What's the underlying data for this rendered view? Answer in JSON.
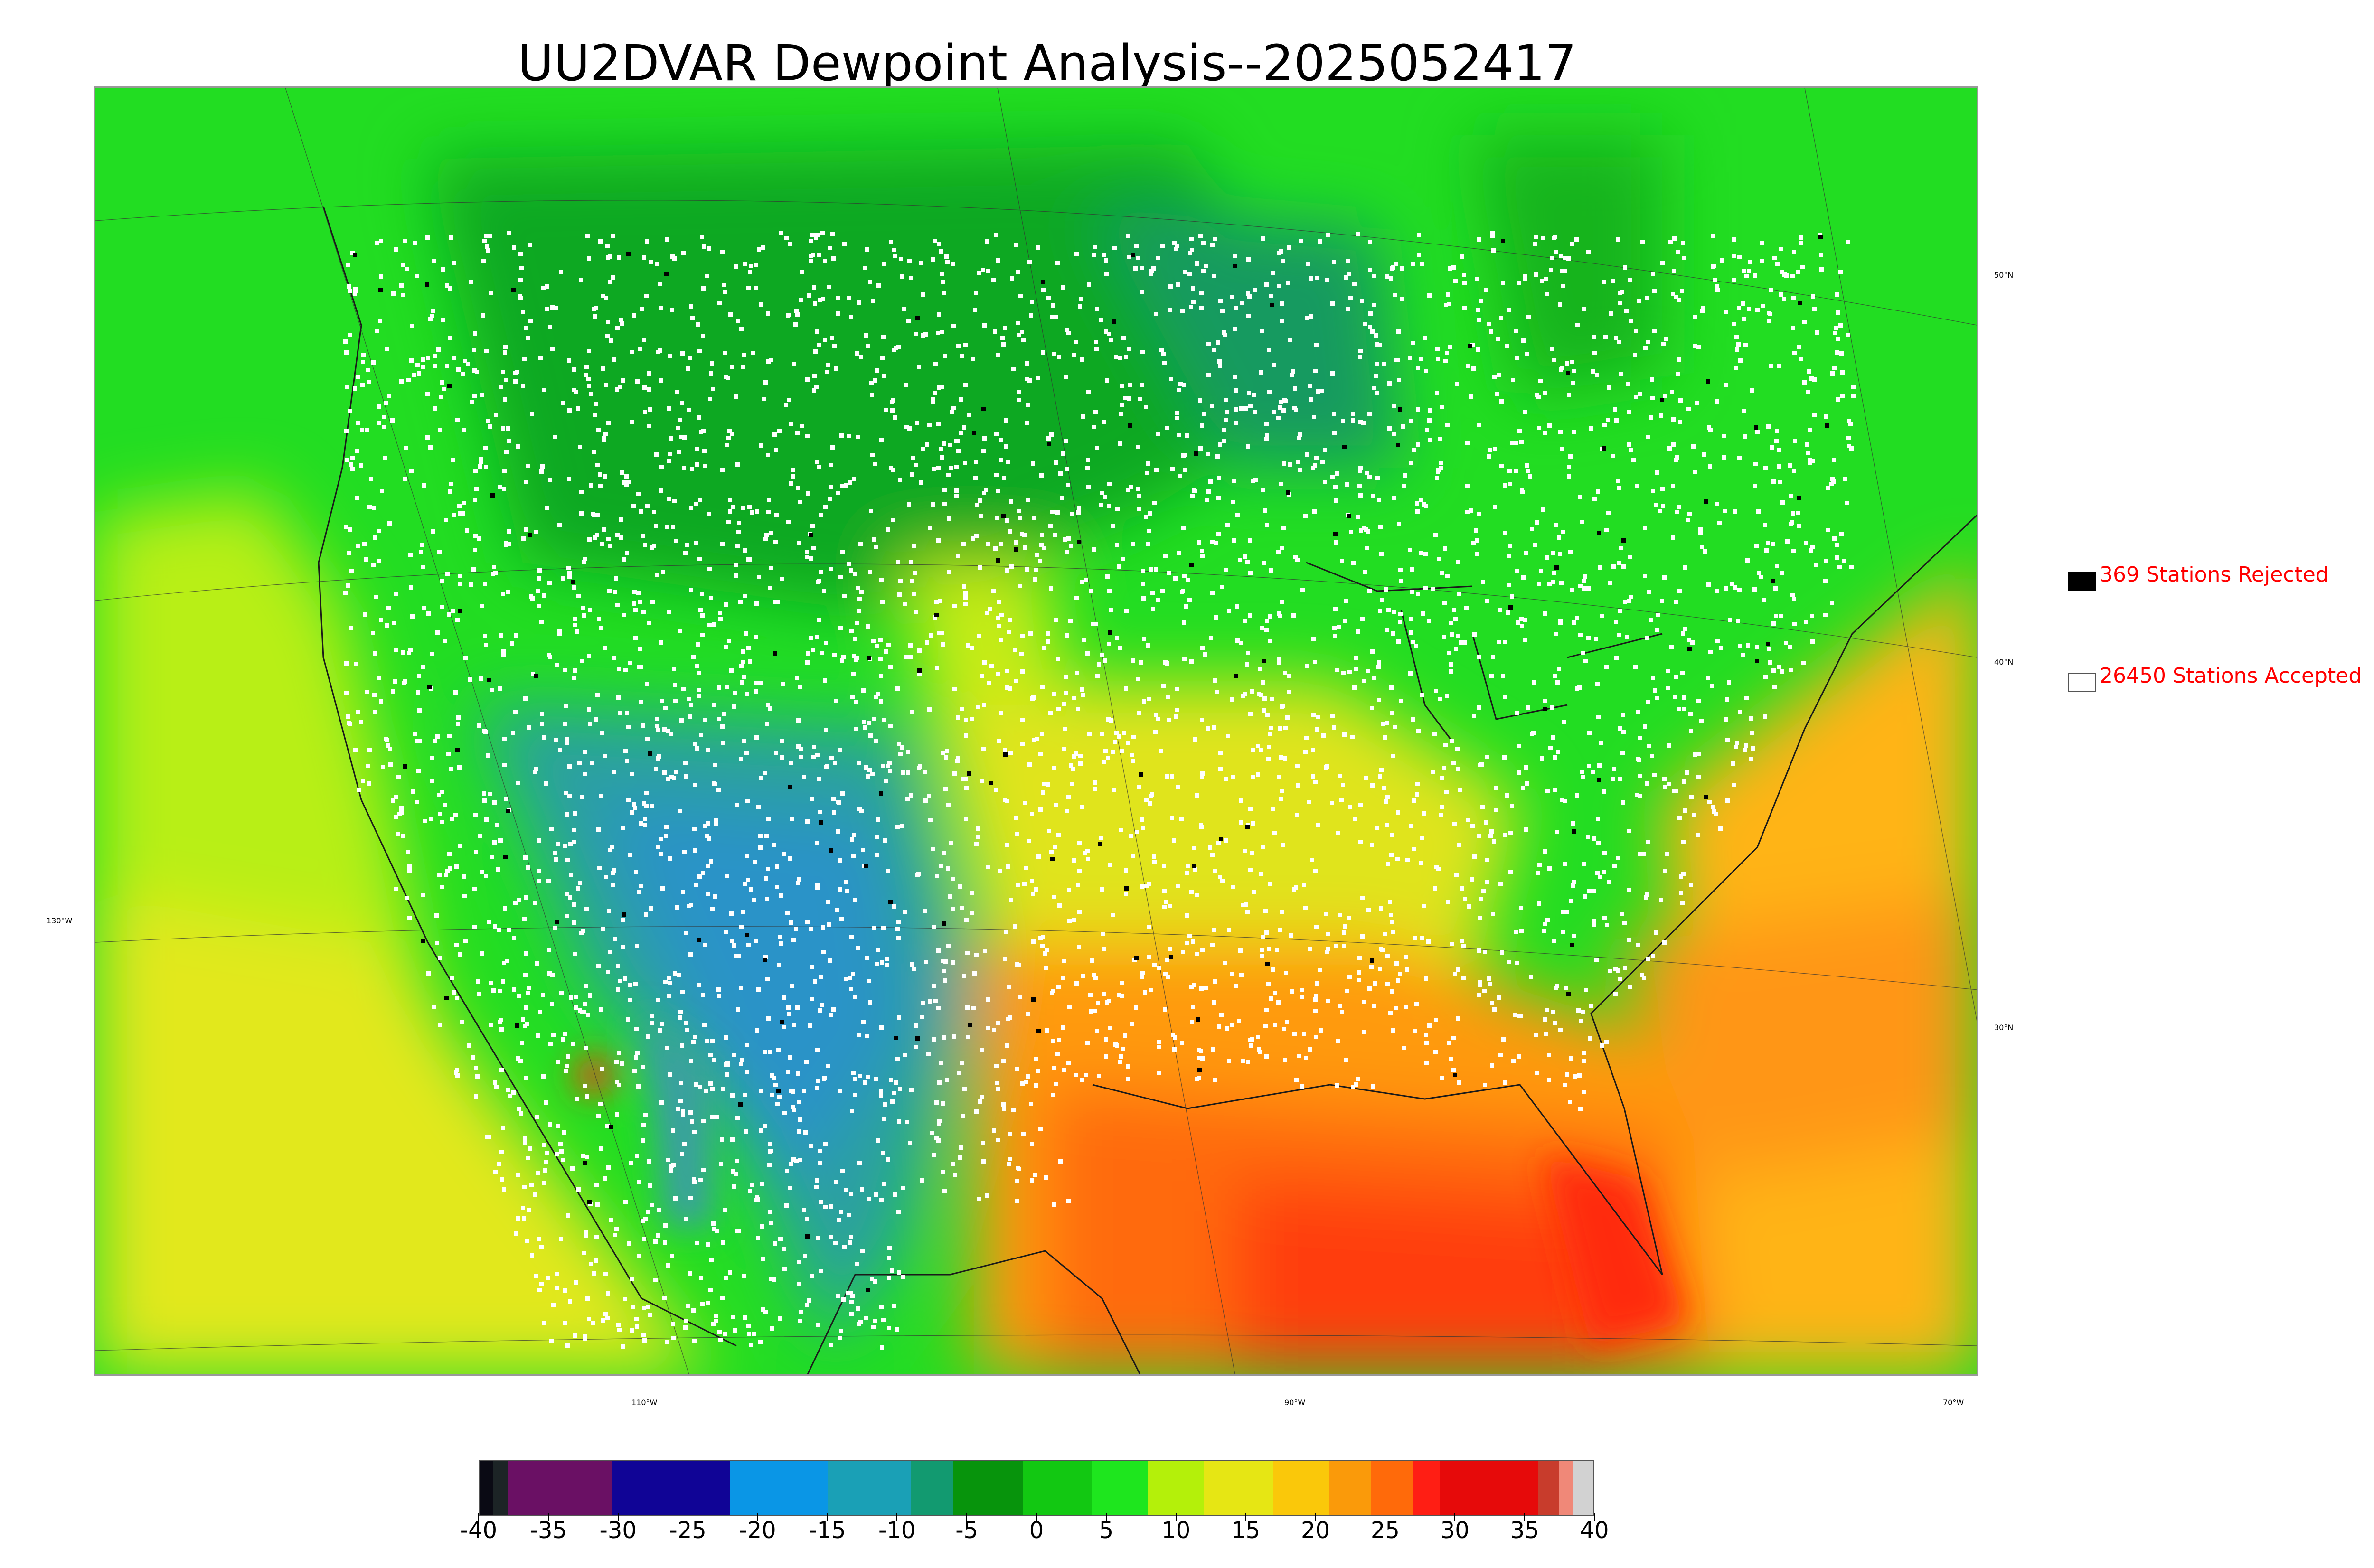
{
  "title": "UU2DVAR Dewpoint Analysis--2025052417",
  "map": {
    "latitude_labels": [
      "50°N",
      "40°N",
      "30°N"
    ],
    "longitude_labels": [
      "130°W",
      "110°W",
      "90°W",
      "70°W"
    ],
    "field": "dewpoint",
    "dominant_colors": {
      "north_green": "#1ad81a",
      "dark_green": "#0fa21f",
      "rockies_teal": "#2a9fa8",
      "gulf_orange": "#ff7a0a",
      "gulf_red": "#ff3a10",
      "plains_yellow": "#e8e51a",
      "ocean_yellowgreen": "#c8f01a"
    },
    "station_colors": {
      "accepted": "#ffffff",
      "rejected": "#000000"
    }
  },
  "legend": {
    "rejected": {
      "label": "369 Stations Rejected",
      "swatch": "#000000",
      "text_color": "#ff0000"
    },
    "accepted": {
      "label": "26450 Stations Accepted",
      "swatch": "#ffffff",
      "text_color": "#ff0000"
    }
  },
  "colorbar": {
    "min": -40,
    "max": 40,
    "tick_labels": [
      "-40",
      "-35",
      "-30",
      "-25",
      "-20",
      "-15",
      "-10",
      "-5",
      "0",
      "5",
      "10",
      "15",
      "20",
      "25",
      "30",
      "35",
      "40"
    ],
    "segments": [
      {
        "from": -40,
        "to": -39,
        "color": "#0a0a14"
      },
      {
        "from": -39,
        "to": -38,
        "color": "#1c2426"
      },
      {
        "from": -38,
        "to": -30.5,
        "color": "#6a1064"
      },
      {
        "from": -30.5,
        "to": -22,
        "color": "#100496"
      },
      {
        "from": -22,
        "to": -15,
        "color": "#0a96e6"
      },
      {
        "from": -15,
        "to": -9,
        "color": "#1aa0b6"
      },
      {
        "from": -9,
        "to": -6,
        "color": "#129a70"
      },
      {
        "from": -6,
        "to": -1,
        "color": "#07940c"
      },
      {
        "from": -1,
        "to": 4,
        "color": "#12c812"
      },
      {
        "from": 4,
        "to": 8,
        "color": "#1ee61e"
      },
      {
        "from": 8,
        "to": 12,
        "color": "#b4f00a"
      },
      {
        "from": 12,
        "to": 17,
        "color": "#e6e614"
      },
      {
        "from": 17,
        "to": 21,
        "color": "#fac80a"
      },
      {
        "from": 21,
        "to": 24,
        "color": "#fa9a0a"
      },
      {
        "from": 24,
        "to": 27,
        "color": "#ff6a0a"
      },
      {
        "from": 27,
        "to": 29,
        "color": "#ff1e14"
      },
      {
        "from": 29,
        "to": 36,
        "color": "#e60a0a"
      },
      {
        "from": 36,
        "to": 37.5,
        "color": "#c83c2c"
      },
      {
        "from": 37.5,
        "to": 38.5,
        "color": "#f08878"
      },
      {
        "from": 38.5,
        "to": 40,
        "color": "#d2d2d2"
      }
    ]
  }
}
